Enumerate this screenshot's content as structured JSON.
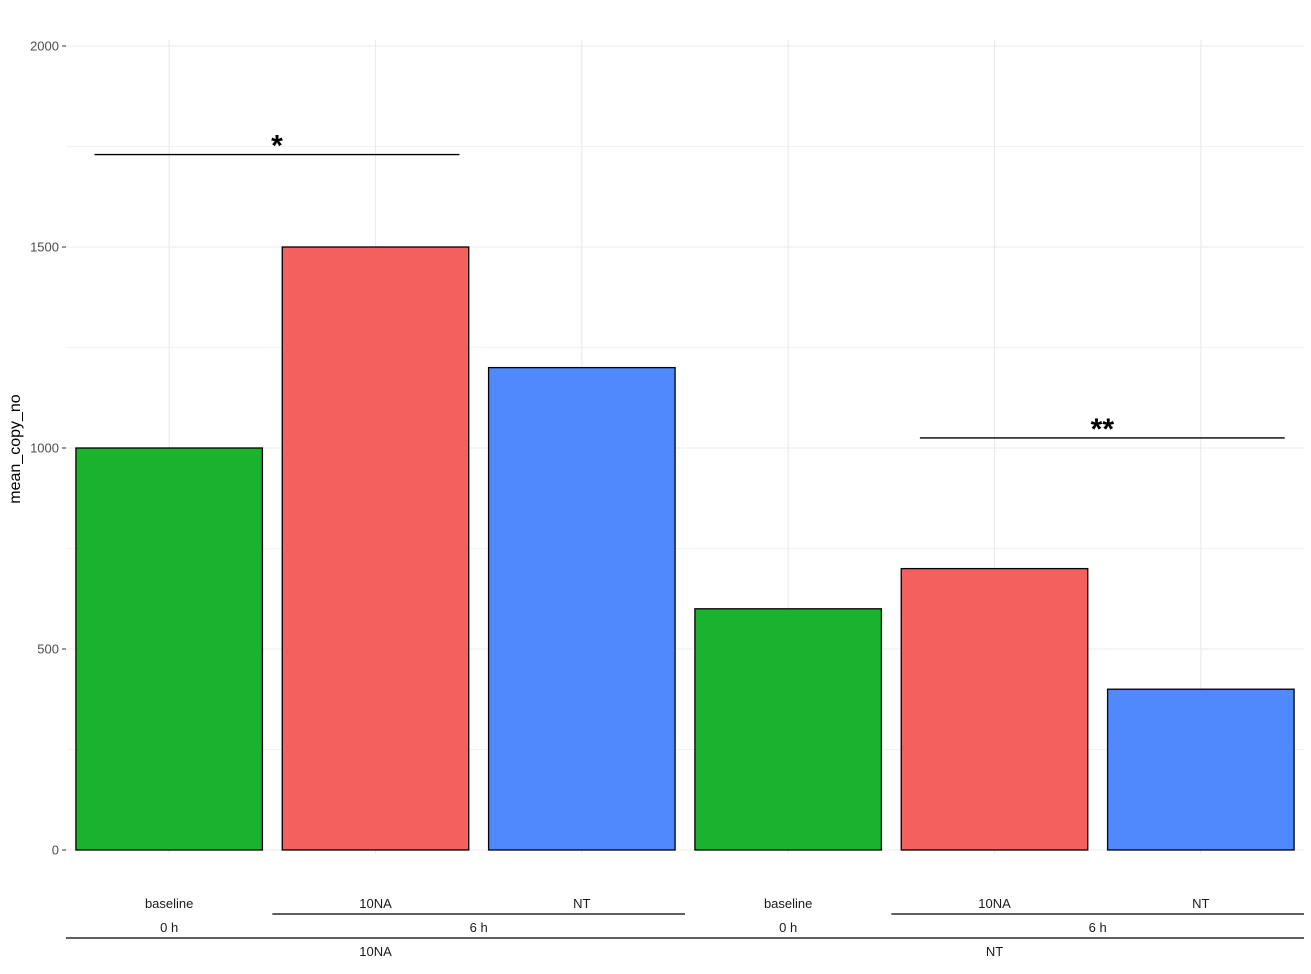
{
  "chart_data": {
    "type": "bar",
    "ylabel": "mean_copy_no",
    "ylim": [
      0,
      2000
    ],
    "yticks": [
      0,
      500,
      1000,
      1500,
      2000
    ],
    "grid": true,
    "bars": [
      {
        "treatment": "baseline",
        "time": "0 h",
        "group": "10NA",
        "value": 1000,
        "color": "#1BB22E"
      },
      {
        "treatment": "10NA",
        "time": "6 h",
        "group": "10NA",
        "value": 1500,
        "color": "#F3605D"
      },
      {
        "treatment": "NT",
        "time": "6 h",
        "group": "10NA",
        "value": 1200,
        "color": "#5088FD"
      },
      {
        "treatment": "baseline",
        "time": "0 h",
        "group": "NT",
        "value": 600,
        "color": "#1BB22E"
      },
      {
        "treatment": "10NA",
        "time": "6 h",
        "group": "NT",
        "value": 700,
        "color": "#F3605D"
      },
      {
        "treatment": "NT",
        "time": "6 h",
        "group": "NT",
        "value": 400,
        "color": "#5088FD"
      }
    ],
    "time_groups": [
      {
        "label": "0 h",
        "bars": [
          0
        ]
      },
      {
        "label": "6 h",
        "bars": [
          1,
          2
        ]
      },
      {
        "label": "0 h",
        "bars": [
          3
        ]
      },
      {
        "label": "6 h",
        "bars": [
          4,
          5
        ]
      }
    ],
    "outer_groups": [
      {
        "label": "10NA",
        "bars": [
          0,
          1,
          2
        ]
      },
      {
        "label": "NT",
        "bars": [
          3,
          4,
          5
        ]
      }
    ],
    "annotations": [
      {
        "label": "*",
        "from_bar": 0,
        "to_bar": 1,
        "y": 1730
      },
      {
        "label": "**",
        "from_bar": 4,
        "to_bar": 5,
        "y": 1025
      }
    ]
  }
}
